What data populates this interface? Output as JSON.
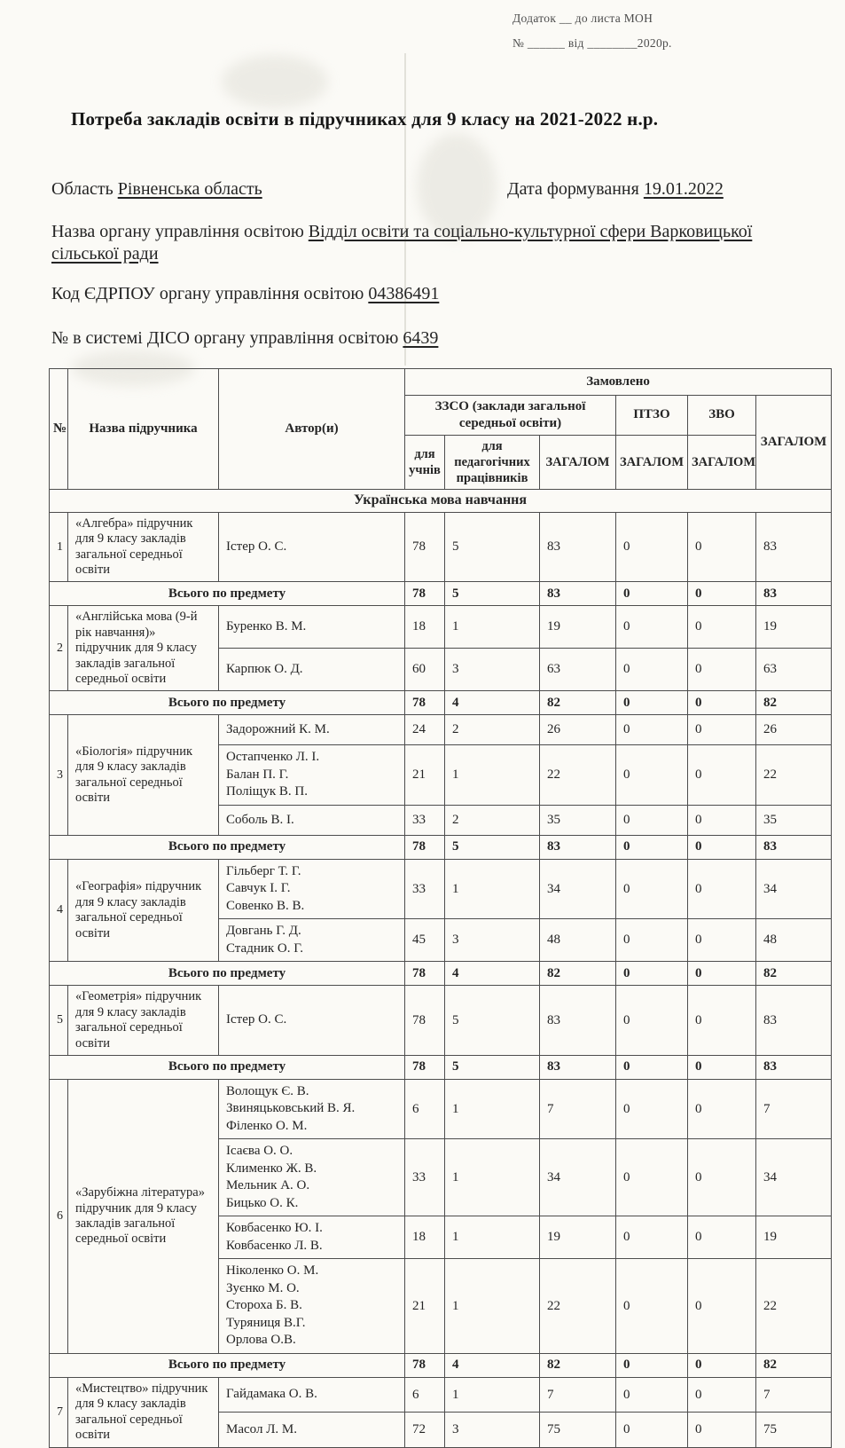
{
  "header": {
    "attachment_line": "Додаток __ до листа МОН",
    "number_line": "№ ______ від ________2020р."
  },
  "title": "Потреба закладів освіти в підручниках для 9 класу на 2021-2022 н.р.",
  "meta": {
    "region_label": "Область",
    "region_value": "Рівненська область",
    "date_label": "Дата формування",
    "date_value": "19.01.2022",
    "authority_label": "Назва органу управління освітою",
    "authority_value": "Відділ освіти та соціально-культурної сфери Варковицької сільської ради",
    "edrpou_label": "Код ЄДРПОУ органу управління освітою",
    "edrpou_value": "04386491",
    "diso_label": "№ в системі ДІСО органу управління освітою",
    "diso_value": "6439"
  },
  "table": {
    "headers": {
      "num": "№",
      "book": "Назва підручника",
      "authors": "Автор(и)",
      "ordered": "Замовлено",
      "zzso": "ЗЗСО (заклади загальної середньої освіти)",
      "ptzo": "ПТЗО",
      "zvo": "ЗВО",
      "students": "для учнів",
      "teachers": "для педагогічних працівників",
      "total": "ЗАГАЛОМ",
      "grand_total": "ЗАГАЛОМ"
    },
    "section_title": "Українська мова навчання",
    "total_label": "Всього по предмету",
    "groups": [
      {
        "num": "1",
        "book": "«Алгебра» підручник для 9 класу закладів загальної середньої освіти",
        "entries": [
          {
            "authors": "Істер О. С.",
            "values": [
              "78",
              "5",
              "83",
              "0",
              "0",
              "83"
            ]
          }
        ],
        "total": [
          "78",
          "5",
          "83",
          "0",
          "0",
          "83"
        ]
      },
      {
        "num": "2",
        "book": "«Англійська мова (9-й рік навчання)» підручник для 9 класу закладів загальної середньої освіти",
        "entries": [
          {
            "authors": "Буренко В. М.",
            "values": [
              "18",
              "1",
              "19",
              "0",
              "0",
              "19"
            ]
          },
          {
            "authors": "Карпюк О. Д.",
            "values": [
              "60",
              "3",
              "63",
              "0",
              "0",
              "63"
            ]
          }
        ],
        "total": [
          "78",
          "4",
          "82",
          "0",
          "0",
          "82"
        ]
      },
      {
        "num": "3",
        "book": "«Біологія» підручник для 9 класу закладів загальної середньої освіти",
        "entries": [
          {
            "authors": "Задорожний К. М.",
            "values": [
              "24",
              "2",
              "26",
              "0",
              "0",
              "26"
            ]
          },
          {
            "authors": "Остапченко Л. І.\nБалан П. Г.\nПоліщук В. П.",
            "values": [
              "21",
              "1",
              "22",
              "0",
              "0",
              "22"
            ]
          },
          {
            "authors": "Соболь В. І.",
            "values": [
              "33",
              "2",
              "35",
              "0",
              "0",
              "35"
            ]
          }
        ],
        "total": [
          "78",
          "5",
          "83",
          "0",
          "0",
          "83"
        ]
      },
      {
        "num": "4",
        "book": "«Географія» підручник для 9 класу закладів загальної середньої освіти",
        "entries": [
          {
            "authors": "Гільберг Т. Г.\nСавчук І. Г.\nСовенко В. В.",
            "values": [
              "33",
              "1",
              "34",
              "0",
              "0",
              "34"
            ]
          },
          {
            "authors": "Довгань Г. Д.\nСтадник О. Г.",
            "values": [
              "45",
              "3",
              "48",
              "0",
              "0",
              "48"
            ]
          }
        ],
        "total": [
          "78",
          "4",
          "82",
          "0",
          "0",
          "82"
        ]
      },
      {
        "num": "5",
        "book": "«Геометрія» підручник для 9 класу закладів загальної середньої освіти",
        "entries": [
          {
            "authors": "Істер О. С.",
            "values": [
              "78",
              "5",
              "83",
              "0",
              "0",
              "83"
            ]
          }
        ],
        "total": [
          "78",
          "5",
          "83",
          "0",
          "0",
          "83"
        ]
      },
      {
        "num": "6",
        "book": "«Зарубіжна література» підручник для 9 класу закладів загальної середньої освіти",
        "entries": [
          {
            "authors": "Волощук Є. В.\nЗвиняцьковський В. Я.\nФіленко О. М.",
            "values": [
              "6",
              "1",
              "7",
              "0",
              "0",
              "7"
            ]
          },
          {
            "authors": "Ісаєва О. О.\nКлименко Ж. В.\nМельник А. О.\nБицько О. К.",
            "values": [
              "33",
              "1",
              "34",
              "0",
              "0",
              "34"
            ]
          },
          {
            "authors": "Ковбасенко Ю. І.\nКовбасенко Л. В.",
            "values": [
              "18",
              "1",
              "19",
              "0",
              "0",
              "19"
            ]
          },
          {
            "authors": "Ніколенко О. М.\nЗуєнко М. О.\nСтороха Б. В.\nТуряниця В.Г.\nОрлова О.В.",
            "values": [
              "21",
              "1",
              "22",
              "0",
              "0",
              "22"
            ]
          }
        ],
        "total": [
          "78",
          "4",
          "82",
          "0",
          "0",
          "82"
        ]
      },
      {
        "num": "7",
        "book": "«Мистецтво» підручник для 9 класу закладів загальної середньої освіти",
        "entries": [
          {
            "authors": "Гайдамака О. В.",
            "values": [
              "6",
              "1",
              "7",
              "0",
              "0",
              "7"
            ]
          },
          {
            "authors": "Масол Л. М.",
            "values": [
              "72",
              "3",
              "75",
              "0",
              "0",
              "75"
            ]
          }
        ],
        "total": null
      }
    ]
  }
}
